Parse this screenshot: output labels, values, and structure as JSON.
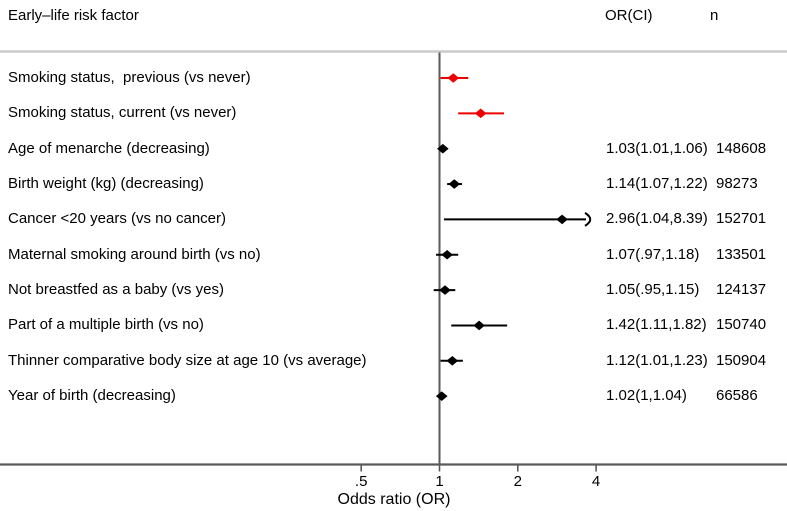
{
  "header": {
    "risk_factor": "Early–life risk factor",
    "or_ci": "OR(CI)",
    "n": "n"
  },
  "axis": {
    "label": "Odds ratio (OR)",
    "ticks": [
      {
        "label": ".5",
        "value": 0.5
      },
      {
        "label": "1",
        "value": 1
      },
      {
        "label": "2",
        "value": 2
      },
      {
        "label": "4",
        "value": 4
      }
    ]
  },
  "colors": {
    "highlight_red": "#ee0000",
    "marker_black": "#000000",
    "axis_line": "#5a5a5a",
    "top_rule": "#cbcbcb"
  },
  "chart_data": {
    "type": "forest",
    "xscale": "log",
    "xlabel": "Odds ratio (OR)",
    "xticks": [
      0.5,
      1,
      2,
      4
    ],
    "refline": 1,
    "clip_max": 4.1,
    "rows": [
      {
        "label": "Smoking status,  previous (vs never)",
        "or": 1.13,
        "ci": [
          1.01,
          1.29
        ],
        "or_text": "",
        "n_text": "",
        "color": "red"
      },
      {
        "label": "Smoking status, current (vs never)",
        "or": 1.44,
        "ci": [
          1.18,
          1.77
        ],
        "or_text": "",
        "n_text": "",
        "color": "red"
      },
      {
        "label": "Age of menarche (decreasing)",
        "or": 1.03,
        "ci": [
          1.01,
          1.06
        ],
        "or_text": "1.03(1.01,1.06)",
        "n_text": "148608",
        "color": "black"
      },
      {
        "label": "Birth weight (kg) (decreasing)",
        "or": 1.14,
        "ci": [
          1.07,
          1.22
        ],
        "or_text": "1.14(1.07,1.22)",
        "n_text": "98273",
        "color": "black"
      },
      {
        "label": "Cancer <20 years (vs no cancer)",
        "or": 2.96,
        "ci": [
          1.04,
          8.39
        ],
        "or_text": "2.96(1.04,8.39)",
        "n_text": "152701",
        "color": "black",
        "clipped_high": true
      },
      {
        "label": "Maternal smoking around birth (vs no)",
        "or": 1.07,
        "ci": [
          0.97,
          1.18
        ],
        "or_text": "1.07(.97,1.18)",
        "n_text": "133501",
        "color": "black"
      },
      {
        "label": "Not breastfed as a baby (vs yes)",
        "or": 1.05,
        "ci": [
          0.95,
          1.15
        ],
        "or_text": "1.05(.95,1.15)",
        "n_text": "124137",
        "color": "black"
      },
      {
        "label": "Part of a multiple birth (vs no)",
        "or": 1.42,
        "ci": [
          1.11,
          1.82
        ],
        "or_text": "1.42(1.11,1.82)",
        "n_text": "150740",
        "color": "black"
      },
      {
        "label": "Thinner comparative body size at age 10 (vs average)",
        "or": 1.12,
        "ci": [
          1.01,
          1.23
        ],
        "or_text": "1.12(1.01,1.23)",
        "n_text": "150904",
        "color": "black"
      },
      {
        "label": "Year of birth (decreasing)",
        "or": 1.02,
        "ci": [
          1.0,
          1.04
        ],
        "or_text": "1.02(1,1.04)",
        "n_text": "66586",
        "color": "black"
      }
    ]
  }
}
